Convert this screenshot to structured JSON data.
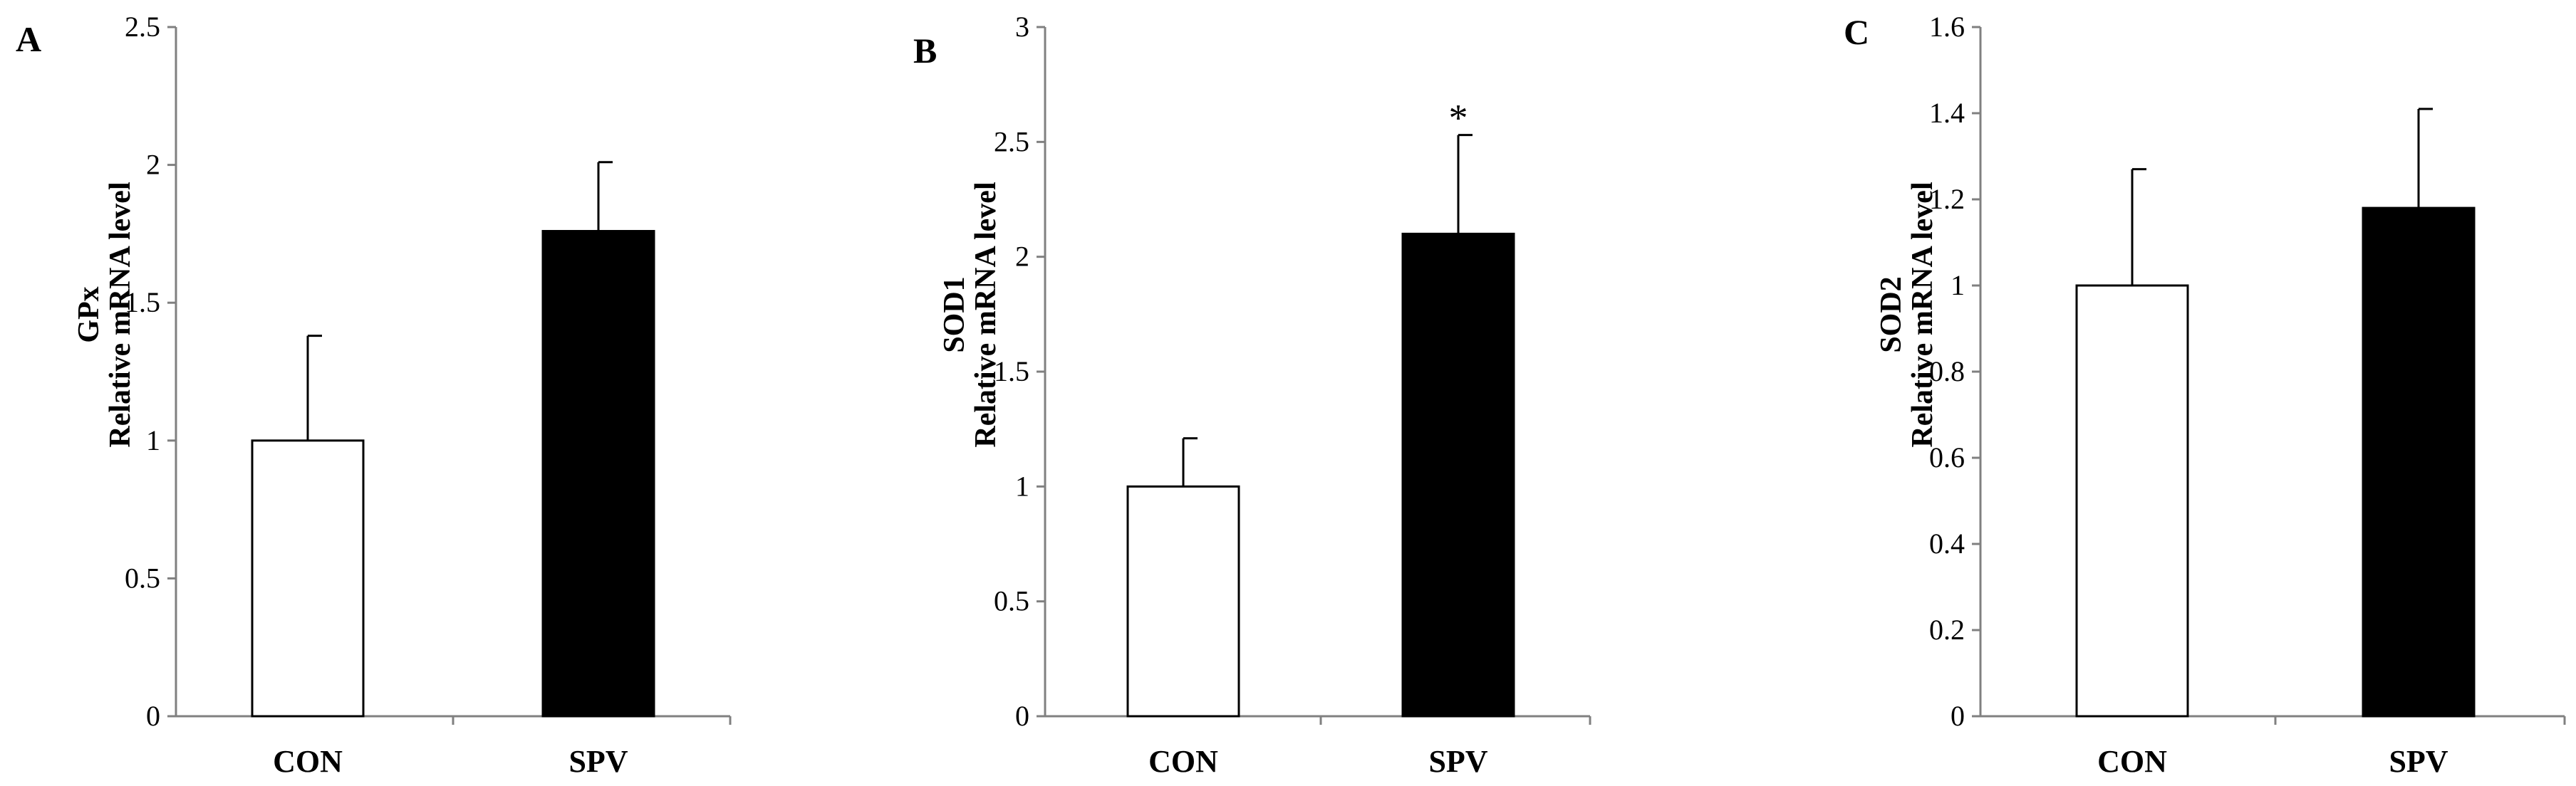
{
  "colors": {
    "background": "#ffffff",
    "axis": "#808080",
    "con_fill": "#ffffff",
    "spv_fill": "#000000",
    "bar_outline": "#000000",
    "error_bar": "#000000"
  },
  "chart_data": [
    {
      "type": "bar",
      "panel": "A",
      "categories": [
        "CON",
        "SPV"
      ],
      "values": [
        1.0,
        1.76
      ],
      "error_upper": [
        0.38,
        0.25
      ],
      "ylabel_lines": [
        "GPx",
        "Relative mRNA level"
      ],
      "ylim": [
        0,
        2.5
      ],
      "yticks": [
        0,
        0.5,
        1,
        1.5,
        2,
        2.5
      ],
      "ytick_labels": [
        "0",
        "0.5",
        "1",
        "1.5",
        "2",
        "2.5"
      ],
      "significance": [
        "",
        ""
      ],
      "grid": false,
      "legend": "none"
    },
    {
      "type": "bar",
      "panel": "B",
      "categories": [
        "CON",
        "SPV"
      ],
      "values": [
        1.0,
        2.1
      ],
      "error_upper": [
        0.21,
        0.43
      ],
      "ylabel_lines": [
        "SOD1",
        "Relative mRNA level"
      ],
      "ylim": [
        0,
        3
      ],
      "yticks": [
        0,
        0.5,
        1,
        1.5,
        2,
        2.5,
        3
      ],
      "ytick_labels": [
        "0",
        "0.5",
        "1",
        "1.5",
        "2",
        "2.5",
        "3"
      ],
      "significance": [
        "",
        "*"
      ],
      "grid": false,
      "legend": "none"
    },
    {
      "type": "bar",
      "panel": "C",
      "categories": [
        "CON",
        "SPV"
      ],
      "values": [
        1.0,
        1.18
      ],
      "error_upper": [
        0.27,
        0.23
      ],
      "ylabel_lines": [
        "SOD2",
        "Relative mRNA level"
      ],
      "ylim": [
        0,
        1.6
      ],
      "yticks": [
        0,
        0.2,
        0.4,
        0.6,
        0.8,
        1,
        1.2,
        1.4,
        1.6
      ],
      "ytick_labels": [
        "0",
        "0.2",
        "0.4",
        "0.6",
        "0.8",
        "1",
        "1.2",
        "1.4",
        "1.6"
      ],
      "significance": [
        "",
        ""
      ],
      "grid": false,
      "legend": "none"
    }
  ]
}
